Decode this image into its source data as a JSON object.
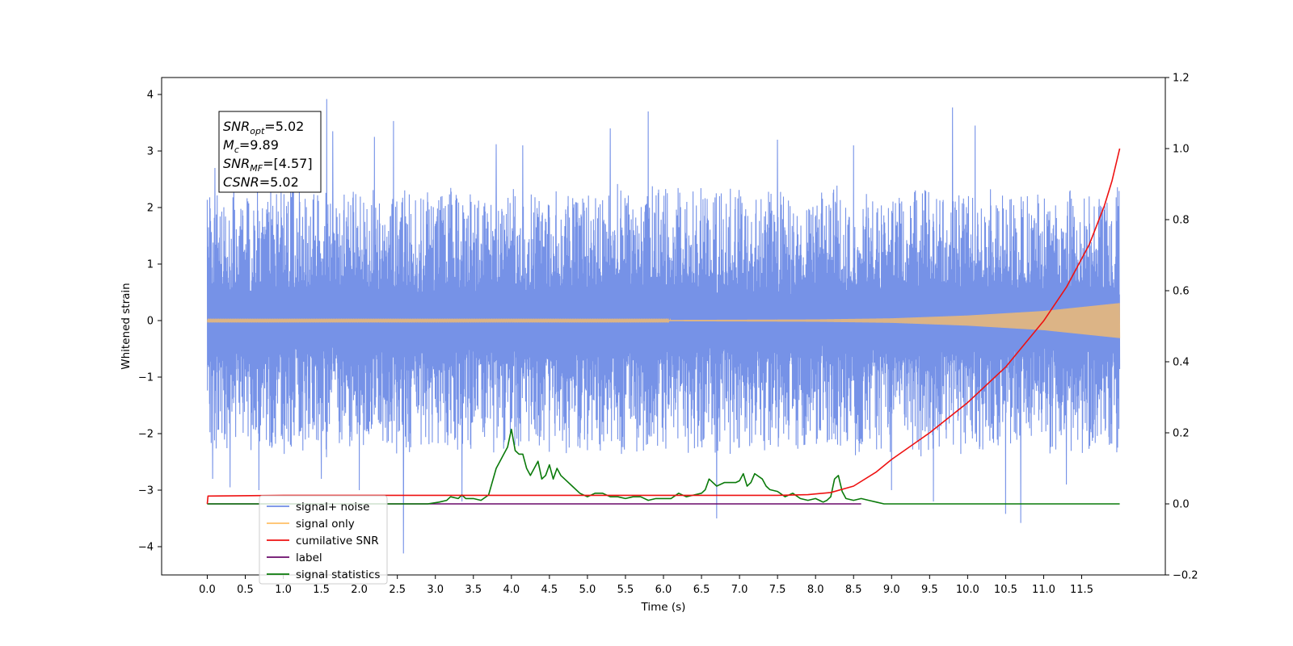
{
  "chart_data": {
    "type": "line",
    "xlabel": "Time (s)",
    "ylabel_left": "Whitened strain",
    "ylabel_right": "",
    "xlim": [
      -0.6,
      12.6
    ],
    "ylim_left": [
      -4.5,
      4.3
    ],
    "ylim_right": [
      -0.2,
      1.2
    ],
    "x_ticks": [
      "0.0",
      "0.5",
      "1.0",
      "1.5",
      "2.0",
      "2.5",
      "3.0",
      "3.5",
      "4.0",
      "4.5",
      "5.0",
      "5.5",
      "6.0",
      "6.5",
      "7.0",
      "7.5",
      "8.0",
      "8.5",
      "9.0",
      "9.5",
      "10.0",
      "10.5",
      "11.0",
      "11.5"
    ],
    "y_ticks_left": [
      "4",
      "3",
      "2",
      "1",
      "0",
      "−1",
      "−2",
      "−3",
      "−4"
    ],
    "y_ticks_right": [
      "1.2",
      "1.0",
      "0.8",
      "0.6",
      "0.4",
      "0.2",
      "0.0",
      "−0.2"
    ],
    "grid": false,
    "legend_position": "lower-left",
    "annotation": {
      "lines": [
        {
          "main": "SNR",
          "sub": "opt",
          "rest": "=5.02"
        },
        {
          "main": "M",
          "sub": "c",
          "rest": "=9.89"
        },
        {
          "main": "SNR",
          "sub": "MF",
          "rest": "=[4.57]"
        },
        {
          "main": "CSNR",
          "sub": "",
          "rest": "=5.02"
        }
      ]
    },
    "series": [
      {
        "name": "signal+ noise",
        "color": "#6f8ce6",
        "axis": "left",
        "description_range": [
          -3.6,
          3.9
        ],
        "spikes": [
          [
            0.1,
            2.7
          ],
          [
            0.35,
            3.2
          ],
          [
            1.12,
            3.6
          ],
          [
            1.57,
            3.92
          ],
          [
            1.65,
            3.35
          ],
          [
            2.2,
            3.25
          ],
          [
            2.45,
            3.53
          ],
          [
            3.8,
            3.12
          ],
          [
            4.15,
            3.1
          ],
          [
            5.3,
            3.4
          ],
          [
            5.8,
            3.7
          ],
          [
            6.7,
            3.2
          ],
          [
            7.5,
            3.2
          ],
          [
            8.5,
            3.1
          ],
          [
            9.8,
            3.77
          ],
          [
            10.1,
            3.45
          ],
          [
            0.07,
            -2.8
          ],
          [
            0.3,
            -2.95
          ],
          [
            0.68,
            -3.0
          ],
          [
            1.5,
            -2.8
          ],
          [
            2.0,
            -3.0
          ],
          [
            2.58,
            -4.12
          ],
          [
            3.35,
            -3.2
          ],
          [
            6.7,
            -3.5
          ],
          [
            9.0,
            -3.0
          ],
          [
            9.55,
            -3.2
          ],
          [
            10.5,
            -3.42
          ],
          [
            10.7,
            -3.58
          ],
          [
            11.3,
            -2.9
          ]
        ]
      },
      {
        "name": "signal only",
        "color": "#ffbf66",
        "axis": "left",
        "amplitude_envelope": [
          [
            0,
            0.01
          ],
          [
            6,
            0.01
          ],
          [
            8,
            0.02
          ],
          [
            9,
            0.04
          ],
          [
            10,
            0.09
          ],
          [
            11,
            0.17
          ],
          [
            11.5,
            0.24
          ],
          [
            12,
            0.31
          ]
        ]
      },
      {
        "name": "cumilative SNR",
        "color": "#ee1111",
        "axis": "right",
        "x": [
          0.0,
          0.01,
          1,
          2,
          3,
          4,
          5,
          6,
          7,
          7.5,
          7.9,
          8.2,
          8.5,
          8.8,
          9.0,
          9.5,
          10.0,
          10.5,
          11.0,
          11.3,
          11.6,
          11.8,
          11.9,
          12.0
        ],
        "y": [
          0.0,
          0.022,
          0.024,
          0.024,
          0.024,
          0.024,
          0.024,
          0.024,
          0.024,
          0.024,
          0.026,
          0.032,
          0.05,
          0.09,
          0.125,
          0.2,
          0.285,
          0.385,
          0.515,
          0.61,
          0.73,
          0.84,
          0.91,
          1.0
        ]
      },
      {
        "name": "label",
        "color": "#6a0a6a",
        "axis": "right",
        "x": [
          0.0,
          8.6
        ],
        "y": [
          0.0,
          0.0
        ]
      },
      {
        "name": "signal statistics",
        "color": "#0a7a0a",
        "axis": "right",
        "x": [
          0.0,
          2.9,
          3.05,
          3.15,
          3.2,
          3.3,
          3.35,
          3.4,
          3.5,
          3.6,
          3.7,
          3.8,
          3.85,
          3.9,
          3.95,
          4.0,
          4.05,
          4.1,
          4.15,
          4.2,
          4.25,
          4.3,
          4.35,
          4.4,
          4.45,
          4.5,
          4.55,
          4.6,
          4.65,
          4.7,
          4.8,
          4.9,
          5.0,
          5.1,
          5.2,
          5.3,
          5.4,
          5.5,
          5.6,
          5.7,
          5.8,
          5.9,
          6.0,
          6.1,
          6.2,
          6.3,
          6.4,
          6.5,
          6.55,
          6.6,
          6.7,
          6.8,
          6.9,
          6.95,
          7.0,
          7.05,
          7.1,
          7.15,
          7.2,
          7.3,
          7.35,
          7.4,
          7.5,
          7.6,
          7.7,
          7.8,
          7.9,
          8.0,
          8.1,
          8.15,
          8.2,
          8.25,
          8.3,
          8.35,
          8.4,
          8.5,
          8.6,
          8.7,
          8.8,
          8.9,
          9.0,
          12.0
        ],
        "y": [
          0.0,
          0.0,
          0.005,
          0.01,
          0.02,
          0.015,
          0.025,
          0.015,
          0.015,
          0.01,
          0.025,
          0.1,
          0.12,
          0.14,
          0.16,
          0.21,
          0.15,
          0.14,
          0.14,
          0.1,
          0.08,
          0.1,
          0.12,
          0.07,
          0.08,
          0.11,
          0.07,
          0.1,
          0.08,
          0.07,
          0.05,
          0.03,
          0.02,
          0.03,
          0.03,
          0.02,
          0.02,
          0.015,
          0.02,
          0.02,
          0.01,
          0.015,
          0.015,
          0.015,
          0.03,
          0.02,
          0.025,
          0.03,
          0.04,
          0.07,
          0.05,
          0.06,
          0.06,
          0.06,
          0.065,
          0.085,
          0.05,
          0.06,
          0.085,
          0.07,
          0.05,
          0.04,
          0.035,
          0.02,
          0.03,
          0.015,
          0.01,
          0.015,
          0.005,
          0.01,
          0.02,
          0.07,
          0.08,
          0.035,
          0.015,
          0.01,
          0.015,
          0.01,
          0.005,
          0.0,
          0.0,
          0.0
        ]
      }
    ]
  }
}
